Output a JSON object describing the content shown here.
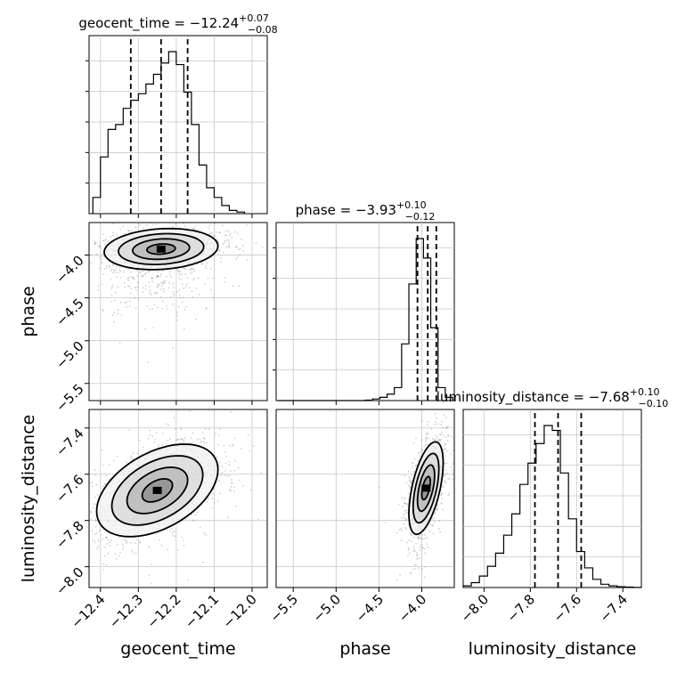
{
  "chart_data": {
    "type": "corner",
    "parameters": [
      {
        "key": "geocent_time",
        "label": "geocent_time",
        "median": "−12.24",
        "plus": "+0.07",
        "minus": "−0.08",
        "lim": [
          -12.43,
          -11.96
        ],
        "ticks": [
          -12.4,
          -12.3,
          -12.2,
          -12.1,
          -12.0
        ],
        "tick_labels": [
          "−12.4",
          "−12.3",
          "−12.2",
          "−12.1",
          "−12.0"
        ],
        "quantiles": [
          -12.32,
          -12.24,
          -12.17
        ]
      },
      {
        "key": "phase",
        "label": "phase",
        "median": "−3.93",
        "plus": "+0.10",
        "minus": "−0.12",
        "lim": [
          -5.7,
          -3.62
        ],
        "ticks": [
          -5.5,
          -5.0,
          -4.5,
          -4.0
        ],
        "tick_labels": [
          "−5.5",
          "−5.0",
          "−4.5",
          "−4.0"
        ],
        "quantiles": [
          -4.05,
          -3.93,
          -3.83
        ]
      },
      {
        "key": "luminosity_distance",
        "label": "luminosity_distance",
        "median": "−7.68",
        "plus": "+0.10",
        "minus": "−0.10",
        "lim": [
          -8.09,
          -7.32
        ],
        "ticks": [
          -8.0,
          -7.8,
          -7.6,
          -7.4
        ],
        "tick_labels": [
          "−8.0",
          "−7.8",
          "−7.6",
          "−7.4"
        ],
        "quantiles": [
          -7.78,
          -7.68,
          -7.58
        ]
      }
    ],
    "title_prefixes": [
      "geocent_time = ",
      "phase = ",
      "luminosity_distance = "
    ],
    "histograms": [
      {
        "param": "geocent_time",
        "bin_edges_start": -12.42,
        "bin_width": 0.02,
        "counts": [
          0.1,
          0.35,
          0.52,
          0.55,
          0.65,
          0.7,
          0.74,
          0.8,
          0.86,
          0.93,
          1.0,
          0.92,
          0.75,
          0.55,
          0.3,
          0.16,
          0.1,
          0.05,
          0.02,
          0.01
        ]
      },
      {
        "param": "phase",
        "bin_edges_start": -5.68,
        "bin_width": 0.085,
        "counts": [
          0,
          0,
          0,
          0,
          0,
          0,
          0,
          0,
          0,
          0,
          0,
          0,
          0.003,
          0.01,
          0.02,
          0.04,
          0.08,
          0.35,
          0.72,
          1.0,
          0.88,
          0.45,
          0.08,
          0.02
        ]
      },
      {
        "param": "luminosity_distance",
        "bin_edges_start": -8.09,
        "bin_width": 0.035,
        "counts": [
          0.01,
          0.03,
          0.07,
          0.13,
          0.21,
          0.32,
          0.45,
          0.63,
          0.76,
          0.88,
          0.99,
          0.96,
          0.7,
          0.42,
          0.22,
          0.12,
          0.05,
          0.02,
          0.01,
          0.005,
          0.003,
          0.001
        ]
      }
    ],
    "joint": [
      {
        "x": "geocent_time",
        "y": "phase",
        "center": [
          -12.24,
          -3.93
        ],
        "sd": [
          0.075,
          0.12
        ],
        "rho": 0.15
      },
      {
        "x": "geocent_time",
        "y": "luminosity_distance",
        "center": [
          -12.25,
          -7.67
        ],
        "sd": [
          0.08,
          0.1
        ],
        "rho": 0.45
      },
      {
        "x": "phase",
        "y": "luminosity_distance",
        "center": [
          -3.95,
          -7.66
        ],
        "sd": [
          0.1,
          0.1
        ],
        "rho": 0.55
      }
    ],
    "grid": true
  }
}
